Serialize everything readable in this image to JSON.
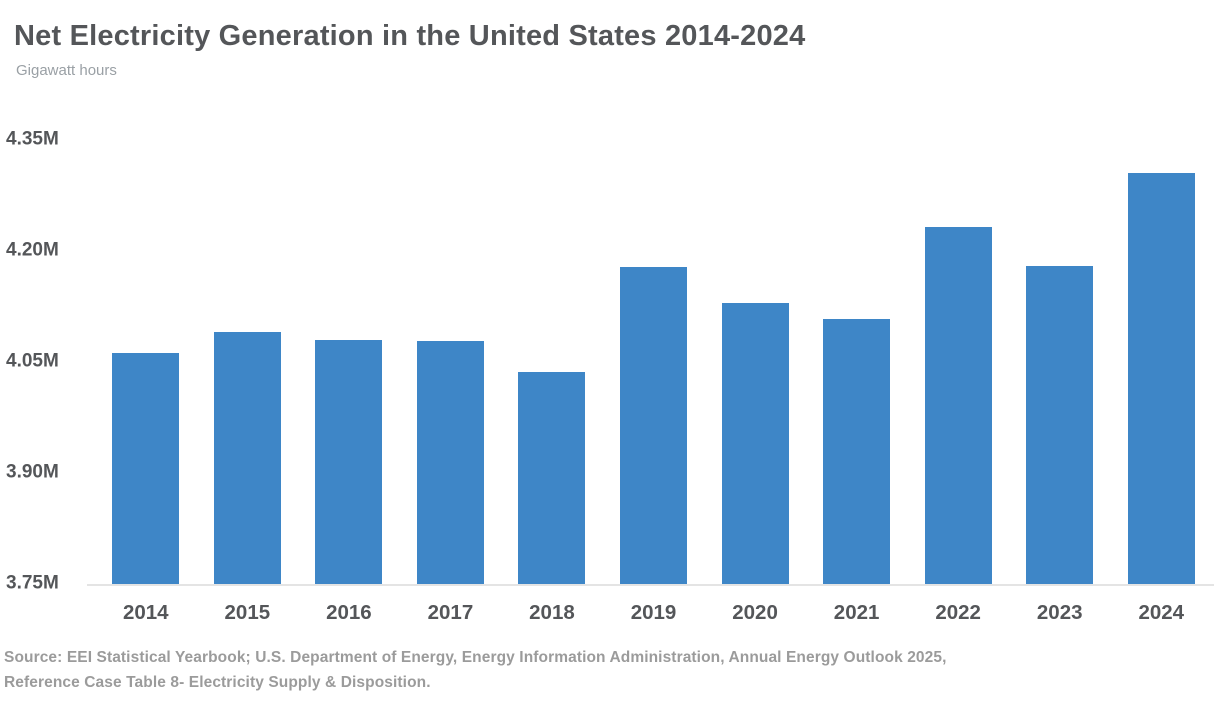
{
  "header": {
    "title": "Net Electricity Generation in the United States 2014-2024",
    "subtitle": "Gigawatt hours"
  },
  "chart_data": {
    "type": "bar",
    "title": "Net Electricity Generation in the United States 2014-2024",
    "unit_label": "Gigawatt hours",
    "categories": [
      "2014",
      "2015",
      "2016",
      "2017",
      "2018",
      "2019",
      "2020",
      "2021",
      "2022",
      "2023",
      "2024"
    ],
    "values": [
      4.062,
      4.091,
      4.08,
      4.078,
      4.037,
      4.179,
      4.13,
      4.108,
      4.233,
      4.18,
      4.306
    ],
    "values_unit": "million gigawatt hours",
    "ylim": [
      3.75,
      4.35
    ],
    "yticks": [
      4.35,
      4.2,
      4.05,
      3.9,
      3.75
    ],
    "ytick_labels": [
      "4.35M",
      "4.20M",
      "4.05M",
      "3.90M",
      "3.75M"
    ],
    "grid": false,
    "legend": false,
    "bar_color": "#3e86c7",
    "baseline_color": "#e4e4e4"
  },
  "footer": {
    "source_line1": "Source: EEI Statistical Yearbook; U.S. Department of Energy, Energy Information Administration, Annual Energy Outlook 2025,",
    "source_line2": "Reference Case Table 8- Electricity Supply & Disposition."
  }
}
